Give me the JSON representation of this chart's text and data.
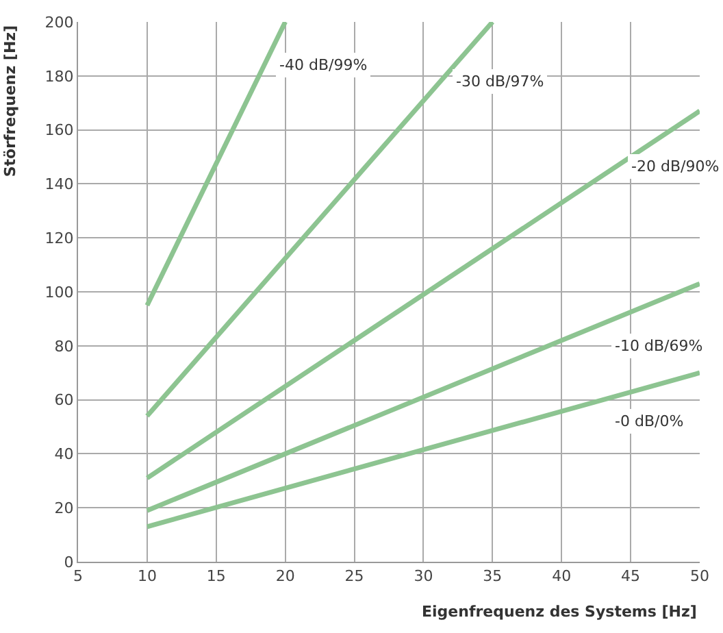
{
  "chart_data": {
    "type": "line",
    "xlabel": "Eigenfrequenz des Systems [Hz]",
    "ylabel": "Störfrequenz [Hz]",
    "series": [
      {
        "name": "-0 dB/0%",
        "color": "#8dc491",
        "x": [
          10,
          50
        ],
        "values": [
          13,
          70
        ]
      },
      {
        "name": "-10 dB/69%",
        "color": "#8dc491",
        "x": [
          10,
          50
        ],
        "values": [
          19,
          103
        ]
      },
      {
        "name": "-20 dB/90%",
        "color": "#8dc491",
        "x": [
          10,
          50
        ],
        "values": [
          31,
          167
        ]
      },
      {
        "name": "-30 dB/97%",
        "color": "#8dc491",
        "x": [
          10,
          35
        ],
        "values": [
          54,
          200
        ]
      },
      {
        "name": "-40 dB/99%",
        "color": "#8dc491",
        "x": [
          10,
          20
        ],
        "values": [
          95,
          200
        ]
      }
    ],
    "xlim": [
      5,
      50
    ],
    "xticks": [
      5,
      10,
      15,
      20,
      25,
      30,
      35,
      40,
      45,
      50
    ],
    "ylim": [
      0,
      200
    ],
    "yticks": [
      0,
      20,
      40,
      60,
      80,
      100,
      120,
      140,
      160,
      180,
      200
    ],
    "grid": true,
    "marker": "none",
    "line_style": "solid",
    "legend": false
  }
}
